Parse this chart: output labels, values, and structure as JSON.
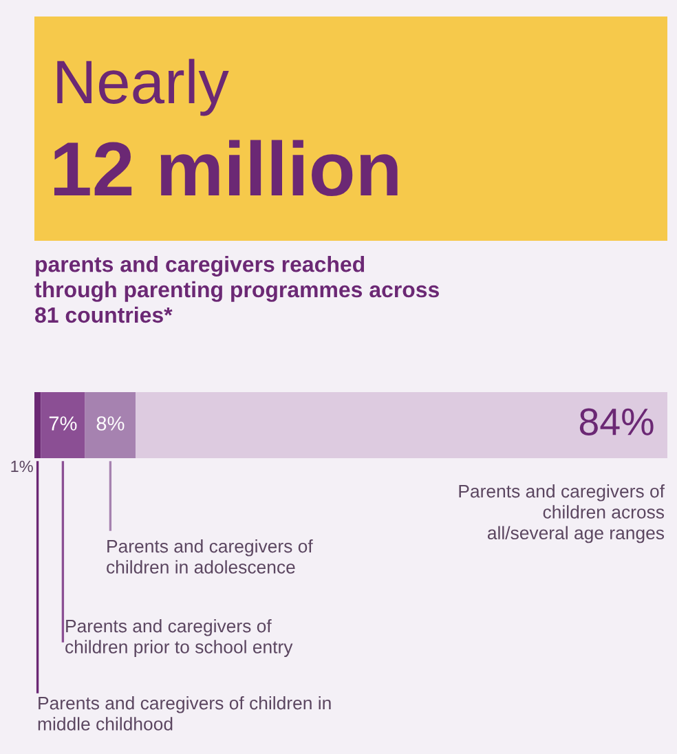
{
  "chart_data": {
    "type": "bar",
    "orientation": "horizontal",
    "stacked": true,
    "title": "Nearly",
    "subtitle": "12 million",
    "annotations": [
      "parents and caregivers reached\nthrough parenting programmes across\n81 countries*"
    ],
    "categories": [
      null
    ],
    "series": [
      {
        "name": "Parents and caregivers of children in\nmiddle childhood",
        "color": "#6b2874",
        "values": [
          1
        ],
        "value_labels": [
          "1%"
        ]
      },
      {
        "name": "Parents and caregivers of\nchildren prior to school entry",
        "color": "#8b4f94",
        "values": [
          7
        ],
        "value_labels": [
          "7%"
        ]
      },
      {
        "name": "Parents and caregivers of\nchildren in adolescence",
        "color": "#a682b0",
        "values": [
          8
        ],
        "value_labels": [
          "8%"
        ]
      },
      {
        "name": "Parents and caregivers of\nchildren across\nall/several age ranges",
        "color": "#ddcbe0",
        "values": [
          84
        ],
        "value_labels": [
          "84%"
        ]
      }
    ],
    "xlim": [
      0,
      100
    ],
    "tick_labels": false
  }
}
